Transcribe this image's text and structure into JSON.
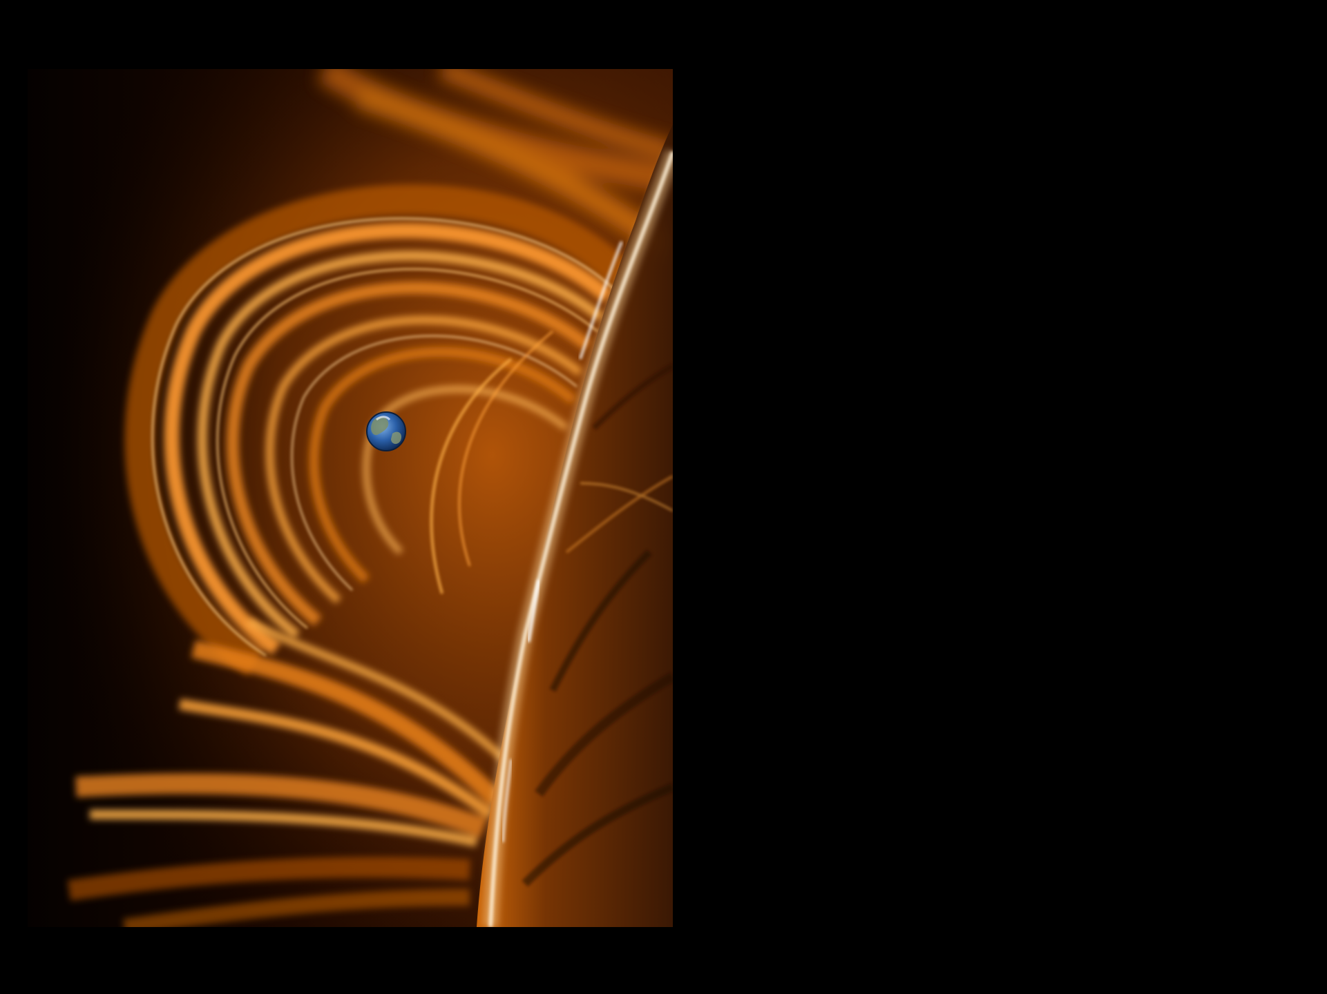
{
  "slide": {
    "background": "#000000"
  },
  "photo": {
    "subject": "coronal-loops-with-earth-scale-comparison",
    "colors": {
      "sky": "#0a0300",
      "loop_bright": "#ffb24a",
      "loop_mid": "#e07a10",
      "loop_dim": "#7a3a05",
      "limb_white": "#fff1d8",
      "surface_dark": "#3a1804",
      "earth_ocean": "#2a5fa8",
      "earth_land": "#7c8f6a"
    }
  }
}
